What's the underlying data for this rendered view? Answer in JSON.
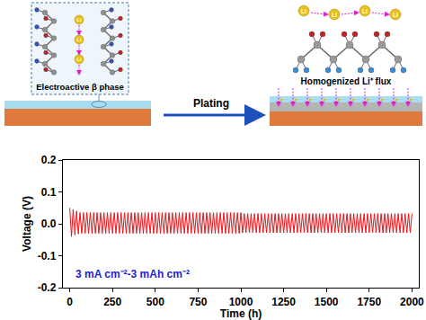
{
  "diagram": {
    "left_panel_label": "Electroactive β phase",
    "arrow_label": "Plating",
    "right_panel_label": "Homogenized Li⁺ flux",
    "atom_label": "Li"
  },
  "chart_data": {
    "type": "line",
    "x": [
      0,
      10,
      20,
      30,
      40,
      50,
      60,
      70,
      80,
      90,
      100,
      110,
      120,
      130,
      140,
      150,
      160,
      170,
      180,
      190,
      200,
      210,
      220,
      230,
      240,
      250,
      260,
      270,
      280,
      290,
      300,
      310,
      320,
      330,
      340,
      350,
      360,
      370,
      380,
      390,
      400,
      410,
      420,
      430,
      440,
      450,
      460,
      470,
      480,
      490,
      500,
      510,
      520,
      530,
      540,
      550,
      560,
      570,
      580,
      590,
      600,
      610,
      620,
      630,
      640,
      650,
      660,
      670,
      680,
      690,
      700,
      710,
      720,
      730,
      740,
      750,
      760,
      770,
      780,
      790,
      800,
      810,
      820,
      830,
      840,
      850,
      860,
      870,
      880,
      890,
      900,
      910,
      920,
      930,
      940,
      950,
      960,
      970,
      980,
      990,
      1000,
      1010,
      1020,
      1030,
      1040,
      1050,
      1060,
      1070,
      1080,
      1090,
      1100,
      1110,
      1120,
      1130,
      1140,
      1150,
      1160,
      1170,
      1180,
      1190,
      1200,
      1210,
      1220,
      1230,
      1240,
      1250,
      1260,
      1270,
      1280,
      1290,
      1300,
      1310,
      1320,
      1330,
      1340,
      1350,
      1360,
      1370,
      1380,
      1390,
      1400,
      1410,
      1420,
      1430,
      1440,
      1450,
      1460,
      1470,
      1480,
      1490,
      1500,
      1510,
      1520,
      1530,
      1540,
      1550,
      1560,
      1570,
      1580,
      1590,
      1600,
      1610,
      1620,
      1630,
      1640,
      1650,
      1660,
      1670,
      1680,
      1690,
      1700,
      1710,
      1720,
      1730,
      1740,
      1750,
      1760,
      1770,
      1780,
      1790,
      1800,
      1810,
      1820,
      1830,
      1840,
      1850,
      1860,
      1870,
      1880,
      1890,
      1900,
      1910,
      1920,
      1930,
      1940,
      1950,
      1960,
      1970,
      1980,
      1990,
      2000
    ],
    "values": [
      0.05,
      -0.04,
      0.045,
      -0.035,
      0.04,
      -0.032,
      0.035,
      -0.03,
      0.035,
      -0.03,
      0.035,
      -0.03,
      0.035,
      -0.03,
      0.035,
      -0.03,
      0.035,
      -0.03,
      0.035,
      -0.03,
      0.035,
      -0.03,
      0.035,
      -0.03,
      0.035,
      -0.03,
      0.035,
      -0.03,
      0.035,
      -0.03,
      0.035,
      -0.03,
      0.035,
      -0.03,
      0.035,
      -0.03,
      0.035,
      -0.03,
      0.035,
      -0.03,
      0.035,
      -0.03,
      0.035,
      -0.03,
      0.035,
      -0.03,
      0.035,
      -0.03,
      0.035,
      -0.03,
      0.035,
      -0.03,
      0.035,
      -0.03,
      0.035,
      -0.03,
      0.035,
      -0.03,
      0.035,
      -0.03,
      0.035,
      -0.03,
      0.035,
      -0.03,
      0.035,
      -0.03,
      0.035,
      -0.03,
      0.035,
      -0.03,
      0.035,
      -0.03,
      0.035,
      -0.03,
      0.035,
      -0.03,
      0.035,
      -0.03,
      0.035,
      -0.03,
      0.035,
      -0.03,
      0.035,
      -0.03,
      0.035,
      -0.03,
      0.035,
      -0.03,
      0.035,
      -0.03,
      0.035,
      -0.03,
      0.035,
      -0.03,
      0.035,
      -0.03,
      0.035,
      -0.03,
      0.035,
      -0.03,
      0.035,
      -0.028,
      0.032,
      -0.028,
      0.032,
      -0.028,
      0.032,
      -0.028,
      0.032,
      -0.028,
      0.032,
      -0.028,
      0.032,
      -0.028,
      0.032,
      -0.028,
      0.032,
      -0.028,
      0.032,
      -0.028,
      0.032,
      -0.028,
      0.032,
      -0.028,
      0.032,
      -0.028,
      0.032,
      -0.028,
      0.032,
      -0.028,
      0.032,
      -0.028,
      0.032,
      -0.028,
      0.032,
      -0.028,
      0.032,
      -0.028,
      0.032,
      -0.028,
      0.032,
      -0.028,
      0.032,
      -0.028,
      0.032,
      -0.028,
      0.032,
      -0.028,
      0.032,
      -0.028,
      0.032,
      -0.028,
      0.032,
      -0.028,
      0.032,
      -0.028,
      0.032,
      -0.028,
      0.032,
      -0.028,
      0.032,
      -0.028,
      0.032,
      -0.028,
      0.032,
      -0.028,
      0.032,
      -0.028,
      0.032,
      -0.028,
      0.032,
      -0.028,
      0.032,
      -0.028,
      0.032,
      -0.028,
      0.032,
      -0.028,
      0.032,
      -0.028,
      0.032,
      -0.028,
      0.032,
      -0.028,
      0.032,
      -0.028,
      0.032,
      -0.028,
      0.032,
      -0.028,
      0.032,
      -0.028,
      0.032,
      -0.028,
      0.032,
      -0.028,
      0.032,
      -0.028,
      0.032,
      -0.028,
      0.032
    ],
    "color": "#e8141a",
    "xlim": [
      -40,
      2040
    ],
    "ylim": [
      -0.2,
      0.2
    ],
    "xticks": [
      0,
      250,
      500,
      750,
      1000,
      1250,
      1500,
      1750,
      2000
    ],
    "yticks": [
      -0.2,
      -0.1,
      {
        "value": 0,
        "label": "0.0"
      },
      0.1,
      0.2
    ],
    "x_label": "Time (h)",
    "y_label": "Voltage (V)",
    "annotations": [
      {
        "text": "3 mA cm⁻²-3 mAh cm⁻²",
        "color": "#1f1fd0"
      }
    ],
    "grid": false
  }
}
